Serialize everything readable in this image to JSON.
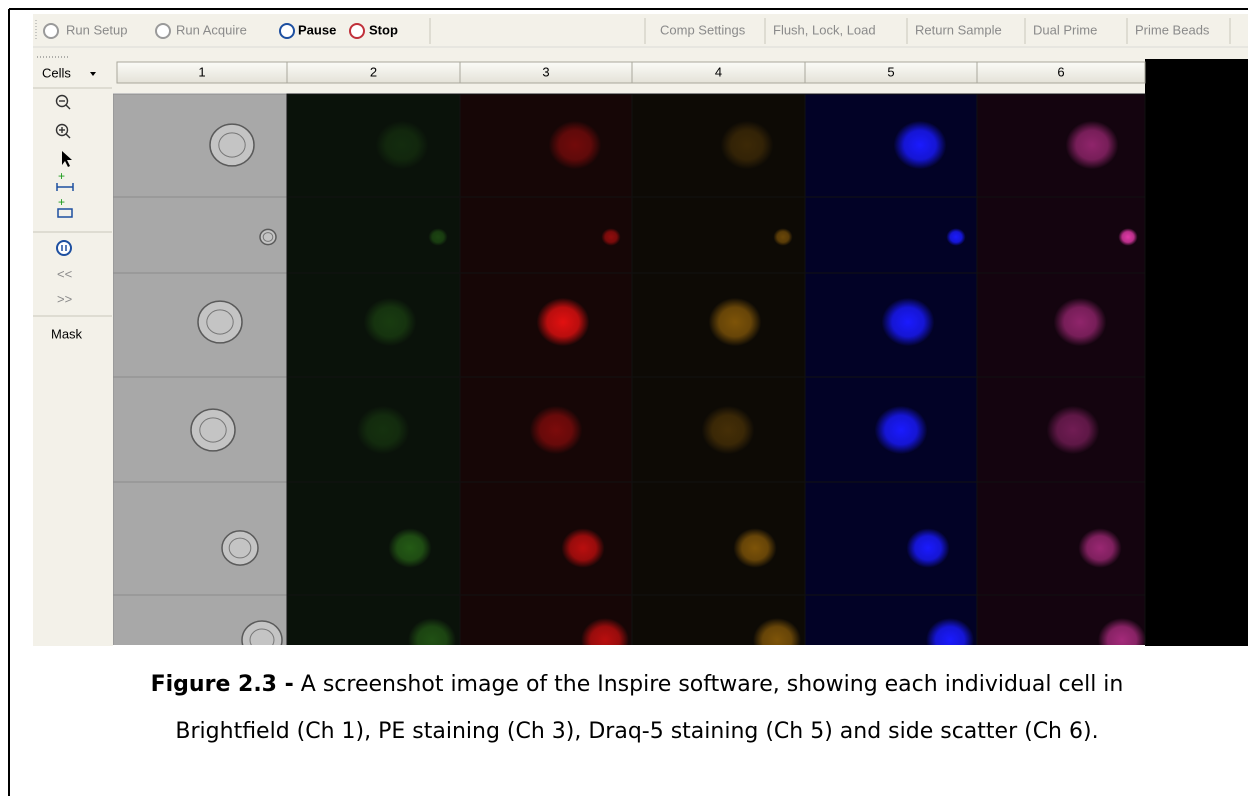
{
  "toolbar": {
    "left": [
      "Run Setup",
      "Run Acquire",
      "Pause",
      "Stop"
    ],
    "right": [
      "Comp Settings",
      "Flush, Lock, Load",
      "Return Sample",
      "Dual Prime",
      "Prime Beads"
    ]
  },
  "sidebar": {
    "dropdown": "Cells",
    "items": [
      "<<",
      ">>"
    ],
    "mask": "Mask"
  },
  "columns": [
    "1",
    "2",
    "3",
    "4",
    "5",
    "6"
  ],
  "caption": {
    "label": "Figure 2.3 -",
    "lines": [
      "A screenshot image of the Inspire software, showing each individual cell in",
      "Brightfield (Ch 1), PE staining (Ch 3), Draq-5 staining (Ch 5) and side scatter (Ch 6)."
    ]
  }
}
